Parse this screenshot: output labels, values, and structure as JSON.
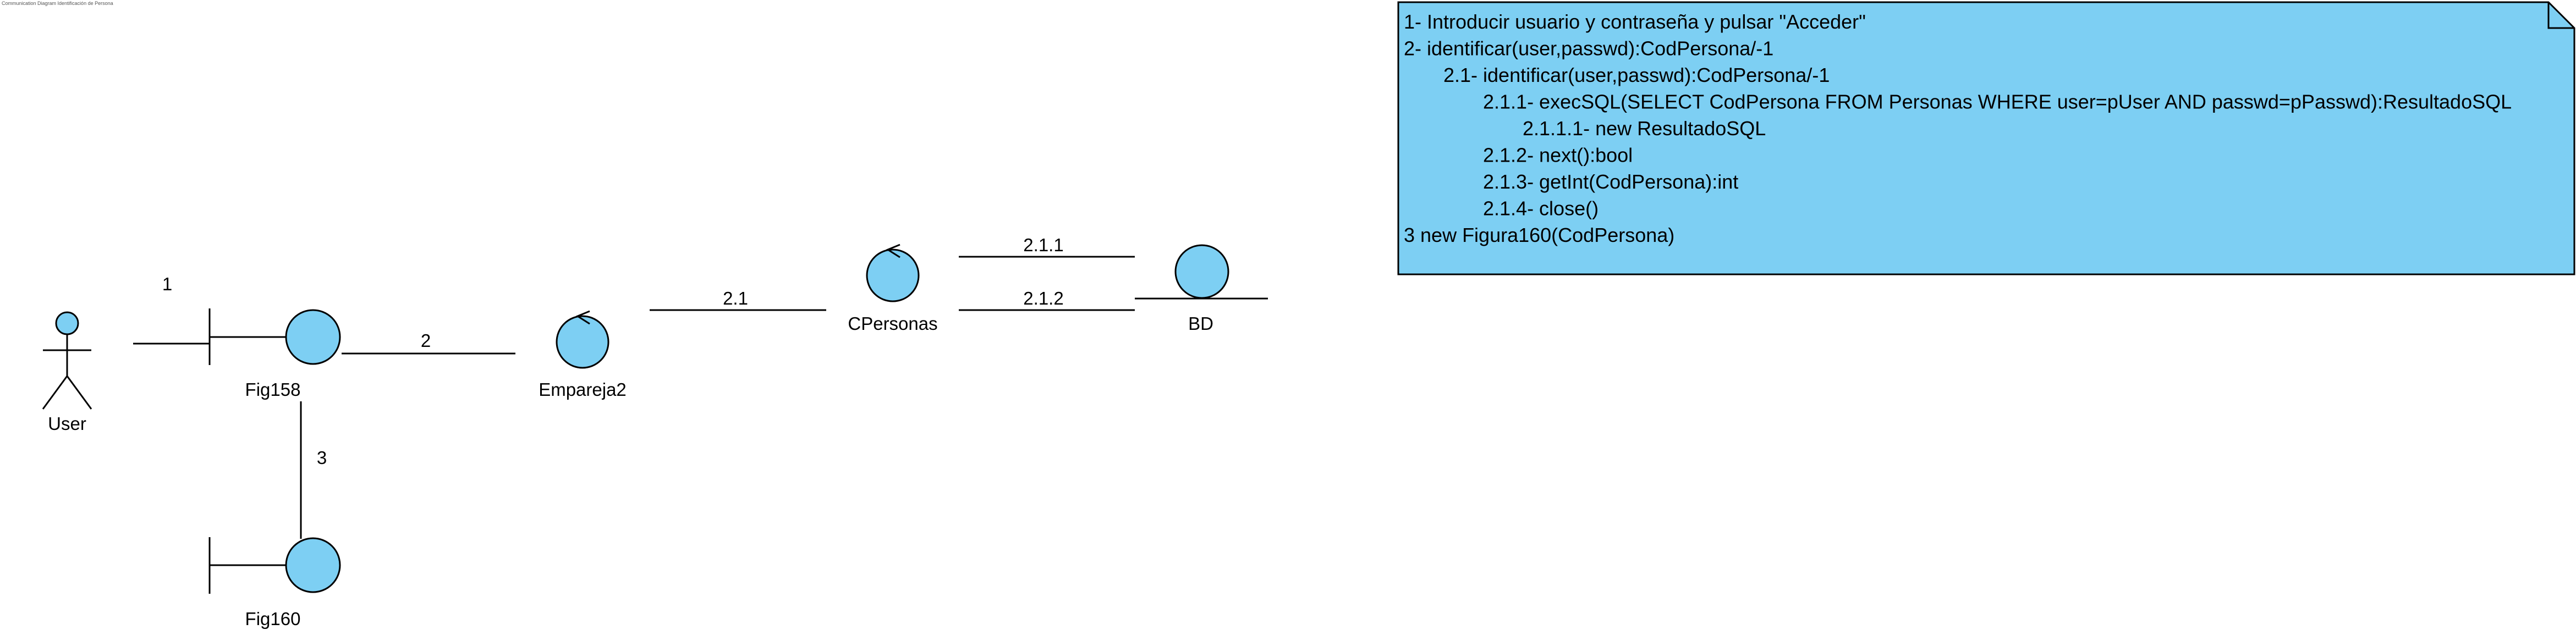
{
  "header": {
    "caption": "Communication Diagram Identificación de Persona"
  },
  "colors": {
    "fill": "#7dcff3",
    "stroke": "#000000",
    "background": "#ffffff"
  },
  "actors": [
    {
      "id": "user",
      "label": "User"
    }
  ],
  "objects": [
    {
      "id": "fig158",
      "kind": "boundary",
      "label": "Fig158"
    },
    {
      "id": "empareja2",
      "kind": "control",
      "label": "Empareja2"
    },
    {
      "id": "cpersonas",
      "kind": "control",
      "label": "CPersonas"
    },
    {
      "id": "bd",
      "kind": "entity",
      "label": "BD"
    },
    {
      "id": "fig160",
      "kind": "boundary",
      "label": "Fig160"
    }
  ],
  "links": [
    {
      "from": "user",
      "to": "fig158",
      "label": "1"
    },
    {
      "from": "fig158",
      "to": "empareja2",
      "label": "2"
    },
    {
      "from": "empareja2",
      "to": "cpersonas",
      "label": "2.1"
    },
    {
      "from": "cpersonas",
      "to": "bd",
      "label": "2.1.1"
    },
    {
      "from": "cpersonas",
      "to": "bd",
      "label": "2.1.2"
    },
    {
      "from": "fig158",
      "to": "fig160",
      "label": "3"
    }
  ],
  "note": {
    "lines": [
      {
        "text": "1- Introducir usuario y contraseña y pulsar \"Acceder\"",
        "indent": 0
      },
      {
        "text": "2- identificar(user,passwd):CodPersona/-1",
        "indent": 0
      },
      {
        "text": "2.1- identificar(user,passwd):CodPersona/-1",
        "indent": 1
      },
      {
        "text": "2.1.1- execSQL(SELECT CodPersona FROM Personas WHERE user=pUser AND passwd=pPasswd):ResultadoSQL",
        "indent": 2
      },
      {
        "text": "2.1.1.1- new ResultadoSQL",
        "indent": 3
      },
      {
        "text": "2.1.2- next():bool",
        "indent": 2
      },
      {
        "text": "2.1.3- getInt(CodPersona):int",
        "indent": 2
      },
      {
        "text": "2.1.4- close()",
        "indent": 2
      },
      {
        "text": "3 new Figura160(CodPersona)",
        "indent": 0
      }
    ]
  }
}
